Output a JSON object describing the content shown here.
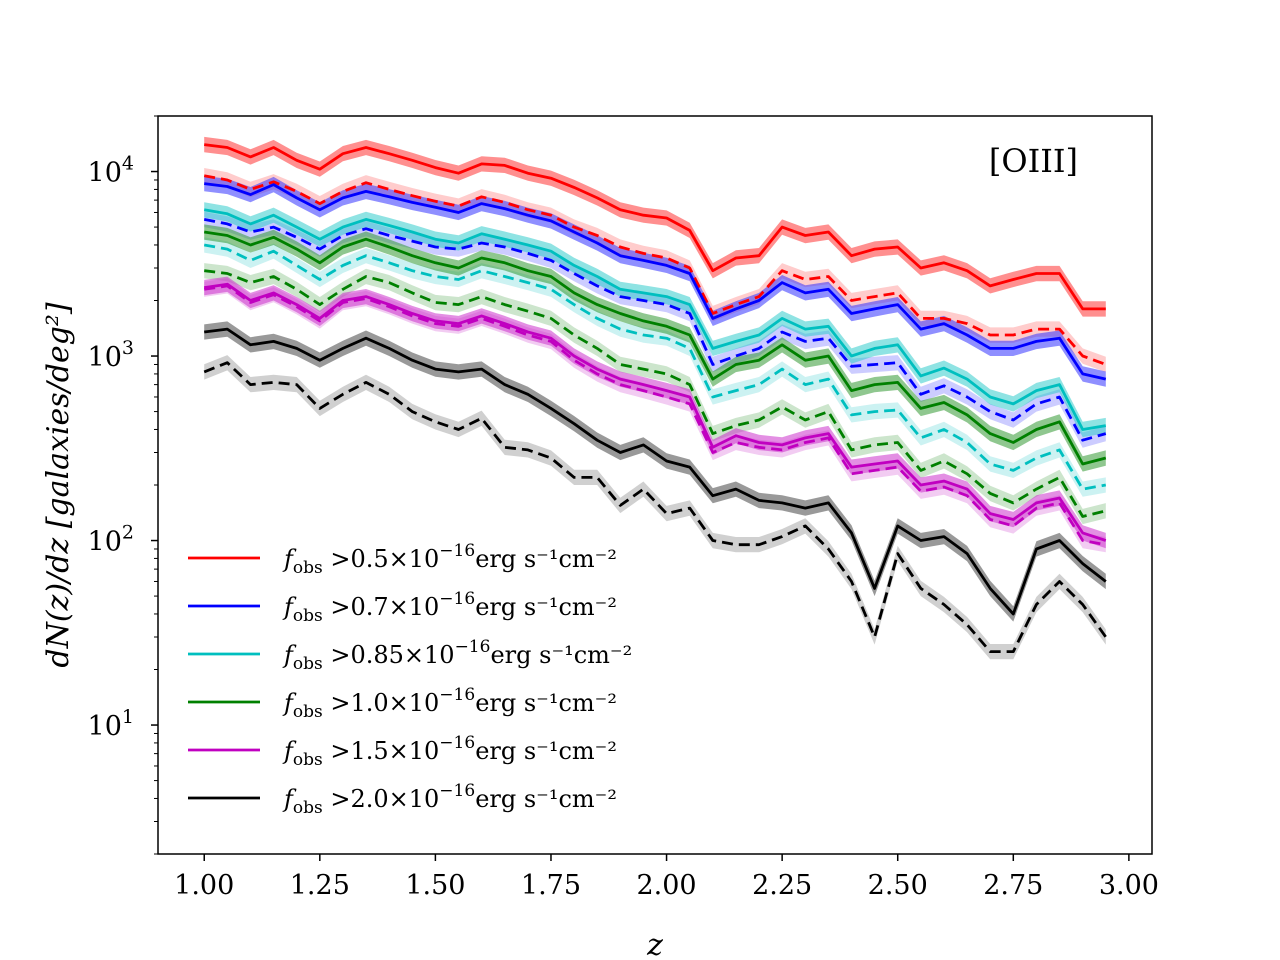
{
  "chart_data": {
    "type": "line",
    "title": "",
    "annotation": "[OIII]",
    "xlabel": "z",
    "ylabel": "dN(z)/dz [galaxies/deg²]",
    "xlim": [
      0.9,
      3.05
    ],
    "ylim": [
      2,
      20000
    ],
    "yscale": "log",
    "x_ticks": [
      "1.00",
      "1.25",
      "1.50",
      "1.75",
      "2.00",
      "2.25",
      "2.50",
      "2.75",
      "3.00"
    ],
    "y_ticks": [
      {
        "value": 10,
        "mantissa": "10",
        "exp": "1"
      },
      {
        "value": 100,
        "mantissa": "10",
        "exp": "2"
      },
      {
        "value": 1000,
        "mantissa": "10",
        "exp": "3"
      },
      {
        "value": 10000,
        "mantissa": "10",
        "exp": "4"
      }
    ],
    "legend_placement": "lower-left",
    "x": [
      1.0,
      1.05,
      1.1,
      1.15,
      1.2,
      1.25,
      1.3,
      1.35,
      1.4,
      1.45,
      1.5,
      1.55,
      1.6,
      1.65,
      1.7,
      1.75,
      1.8,
      1.85,
      1.9,
      1.95,
      2.0,
      2.05,
      2.1,
      2.15,
      2.2,
      2.25,
      2.3,
      2.35,
      2.4,
      2.45,
      2.5,
      2.55,
      2.6,
      2.65,
      2.7,
      2.75,
      2.8,
      2.85,
      2.9,
      2.95
    ],
    "series": [
      {
        "name": "f_obs >0.5×10⁻¹⁶ erg s⁻¹cm⁻²",
        "legend_prefix": "f",
        "legend_sub": "obs",
        "legend_mid": " >0.5×10",
        "legend_exp": "−16",
        "legend_tail": "erg s⁻¹cm⁻²",
        "color": "#ff0000",
        "fill": "#ff3333",
        "solid": [
          14000,
          13500,
          12000,
          13500,
          11500,
          10300,
          12500,
          13500,
          12500,
          11500,
          10500,
          9800,
          11000,
          10800,
          9800,
          9200,
          8200,
          7200,
          6200,
          5800,
          5600,
          4800,
          2900,
          3400,
          3500,
          5000,
          4500,
          4700,
          3500,
          3800,
          3900,
          3000,
          3200,
          2900,
          2400,
          2600,
          2800,
          2800,
          1800,
          1800
        ],
        "dashed": [
          9500,
          9000,
          8000,
          8800,
          7800,
          6700,
          7800,
          8700,
          8000,
          7400,
          6900,
          6500,
          7300,
          6800,
          6200,
          5800,
          5000,
          4500,
          3900,
          3600,
          3400,
          3000,
          1700,
          1900,
          2100,
          2900,
          2600,
          2700,
          2000,
          2100,
          2200,
          1600,
          1600,
          1500,
          1300,
          1300,
          1400,
          1400,
          1000,
          900
        ]
      },
      {
        "name": "f_obs >0.7×10⁻¹⁶ erg s⁻¹cm⁻²",
        "legend_prefix": "f",
        "legend_sub": "obs",
        "legend_mid": " >0.7×10",
        "legend_exp": "−16",
        "legend_tail": "erg s⁻¹cm⁻²",
        "color": "#0000ff",
        "fill": "#3333ff",
        "solid": [
          8600,
          8300,
          7500,
          8500,
          7200,
          6200,
          7200,
          7800,
          7300,
          6800,
          6400,
          6000,
          6700,
          6300,
          5800,
          5400,
          4700,
          4100,
          3500,
          3300,
          3100,
          2800,
          1600,
          1800,
          2000,
          2500,
          2200,
          2300,
          1700,
          1800,
          1900,
          1400,
          1500,
          1300,
          1100,
          1100,
          1200,
          1250,
          800,
          750
        ],
        "dashed": [
          5500,
          5200,
          4700,
          5000,
          4400,
          3800,
          4500,
          4900,
          4500,
          4200,
          3900,
          3800,
          4100,
          3900,
          3600,
          3300,
          2800,
          2400,
          2100,
          2000,
          1900,
          1700,
          900,
          1000,
          1100,
          1350,
          1200,
          1250,
          880,
          900,
          920,
          620,
          690,
          600,
          500,
          450,
          550,
          600,
          350,
          380
        ]
      },
      {
        "name": "f_obs >0.85×10⁻¹⁶ erg s⁻¹cm⁻²",
        "legend_prefix": "f",
        "legend_sub": "obs",
        "legend_mid": " >0.85×10",
        "legend_exp": "−16",
        "legend_tail": "erg s⁻¹cm⁻²",
        "color": "#00bfbf",
        "fill": "#33cccc",
        "solid": [
          6200,
          5900,
          5200,
          5800,
          5000,
          4300,
          5000,
          5500,
          5100,
          4700,
          4300,
          4100,
          4600,
          4300,
          4000,
          3700,
          3100,
          2700,
          2300,
          2200,
          2100,
          1900,
          1100,
          1200,
          1300,
          1600,
          1400,
          1450,
          1000,
          1100,
          1150,
          780,
          860,
          750,
          600,
          550,
          650,
          700,
          400,
          420
        ],
        "dashed": [
          4000,
          3800,
          3300,
          3700,
          3100,
          2600,
          3100,
          3500,
          3200,
          2900,
          2700,
          2600,
          2900,
          2700,
          2500,
          2300,
          1900,
          1600,
          1400,
          1300,
          1250,
          1100,
          600,
          650,
          700,
          850,
          700,
          750,
          480,
          500,
          510,
          360,
          400,
          340,
          260,
          240,
          280,
          310,
          190,
          200
        ]
      },
      {
        "name": "f_obs >1.0×10⁻¹⁶ erg s⁻¹cm⁻²",
        "legend_prefix": "f",
        "legend_sub": "obs",
        "legend_mid": " >1.0×10",
        "legend_exp": "−16",
        "legend_tail": "erg s⁻¹cm⁻²",
        "color": "#008000",
        "fill": "#339933",
        "solid": [
          4700,
          4500,
          4000,
          4400,
          3800,
          3200,
          3900,
          4300,
          3900,
          3500,
          3200,
          3000,
          3400,
          3200,
          2900,
          2700,
          2200,
          1900,
          1700,
          1550,
          1450,
          1300,
          750,
          900,
          950,
          1150,
          950,
          1000,
          650,
          700,
          720,
          520,
          560,
          480,
          380,
          340,
          400,
          440,
          260,
          280
        ],
        "dashed": [
          2900,
          2800,
          2500,
          2700,
          2300,
          1900,
          2300,
          2700,
          2500,
          2200,
          1950,
          1900,
          2100,
          1900,
          1750,
          1600,
          1300,
          1100,
          900,
          850,
          800,
          700,
          380,
          420,
          450,
          530,
          450,
          500,
          310,
          330,
          340,
          240,
          270,
          230,
          180,
          160,
          190,
          220,
          135,
          145
        ]
      },
      {
        "name": "f_obs >1.5×10⁻¹⁶ erg s⁻¹cm⁻²",
        "legend_prefix": "f",
        "legend_sub": "obs",
        "legend_mid": " >1.5×10",
        "legend_exp": "−16",
        "legend_tail": "erg s⁻¹cm⁻²",
        "color": "#c000c0",
        "fill": "#cc33cc",
        "solid": [
          2350,
          2450,
          2000,
          2200,
          1900,
          1600,
          2000,
          2100,
          1900,
          1700,
          1550,
          1500,
          1650,
          1500,
          1350,
          1250,
          1000,
          850,
          750,
          700,
          650,
          600,
          320,
          370,
          340,
          330,
          360,
          380,
          250,
          260,
          270,
          200,
          210,
          190,
          140,
          130,
          160,
          170,
          110,
          100
        ],
        "dashed": [
          2300,
          2400,
          1950,
          2150,
          1850,
          1550,
          1950,
          2050,
          1850,
          1650,
          1500,
          1450,
          1600,
          1450,
          1300,
          1200,
          950,
          800,
          700,
          650,
          600,
          550,
          300,
          340,
          320,
          310,
          340,
          360,
          230,
          240,
          250,
          185,
          195,
          175,
          130,
          120,
          150,
          160,
          100,
          95
        ]
      },
      {
        "name": "f_obs >2.0×10⁻¹⁶ erg s⁻¹cm⁻²",
        "legend_prefix": "f",
        "legend_sub": "obs",
        "legend_mid": " >2.0×10",
        "legend_exp": "−16",
        "legend_tail": "erg s⁻¹cm⁻²",
        "color": "#000000",
        "fill": "#555555",
        "solid": [
          1350,
          1400,
          1150,
          1200,
          1100,
          950,
          1100,
          1250,
          1100,
          950,
          850,
          820,
          850,
          700,
          620,
          520,
          430,
          350,
          300,
          330,
          270,
          250,
          175,
          190,
          165,
          160,
          150,
          160,
          110,
          55,
          120,
          100,
          105,
          85,
          55,
          40,
          90,
          100,
          75,
          60
        ],
        "dashed": [
          820,
          920,
          700,
          720,
          700,
          520,
          620,
          720,
          620,
          500,
          440,
          400,
          460,
          320,
          310,
          280,
          220,
          220,
          155,
          190,
          140,
          150,
          100,
          95,
          95,
          105,
          120,
          90,
          60,
          30,
          85,
          55,
          45,
          35,
          25,
          25,
          45,
          60,
          45,
          30
        ]
      }
    ]
  }
}
